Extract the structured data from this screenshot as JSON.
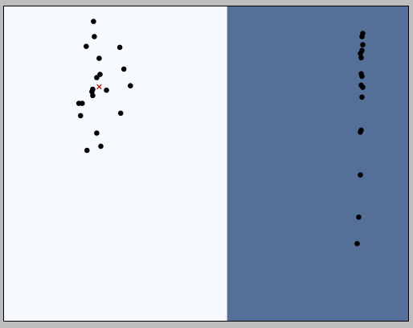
{
  "chart_data": {
    "type": "scatter",
    "title": "",
    "xlabel": "",
    "ylabel": "",
    "grid": false,
    "xlim": [
      0,
      100
    ],
    "ylim": [
      0,
      100
    ],
    "regions": [
      {
        "x0": 0,
        "x1": 55.2,
        "color": "#f7fbff"
      },
      {
        "x0": 55.2,
        "x1": 100,
        "color": "#546f98"
      }
    ],
    "colors": {
      "point": "#000000",
      "marker": "#d00000",
      "outside": "#bdbdbd",
      "border": "#000000"
    },
    "series": [
      {
        "points": [
          [
            22.2,
            95.1
          ],
          [
            22.4,
            90.3
          ],
          [
            20.4,
            87.2
          ],
          [
            28.7,
            86.9
          ],
          [
            23.6,
            83.4
          ],
          [
            29.7,
            80.0
          ],
          [
            23.8,
            78.3
          ],
          [
            23.0,
            77.3
          ],
          [
            31.3,
            74.7
          ],
          [
            22.0,
            73.6
          ],
          [
            25.4,
            73.3
          ],
          [
            21.8,
            72.8
          ],
          [
            22.0,
            71.6
          ],
          [
            19.4,
            69.1
          ],
          [
            18.6,
            69.1
          ],
          [
            28.9,
            66.0
          ],
          [
            19.0,
            65.2
          ],
          [
            23.0,
            59.7
          ],
          [
            24.0,
            55.5
          ],
          [
            20.6,
            54.2
          ]
        ]
      },
      {
        "points": [
          [
            88.7,
            91.3
          ],
          [
            88.5,
            90.3
          ],
          [
            88.7,
            87.7
          ],
          [
            88.5,
            85.9
          ],
          [
            88.1,
            84.9
          ],
          [
            88.3,
            83.6
          ],
          [
            88.3,
            78.5
          ],
          [
            88.5,
            77.7
          ],
          [
            88.3,
            74.9
          ],
          [
            88.7,
            74.2
          ],
          [
            88.5,
            71.1
          ],
          [
            88.3,
            60.6
          ],
          [
            88.1,
            60.0
          ],
          [
            88.1,
            46.4
          ],
          [
            87.7,
            33.0
          ],
          [
            87.3,
            24.6
          ]
        ]
      }
    ],
    "markers": [
      {
        "x": 23.6,
        "y": 74.4,
        "symbol": "x"
      }
    ]
  }
}
